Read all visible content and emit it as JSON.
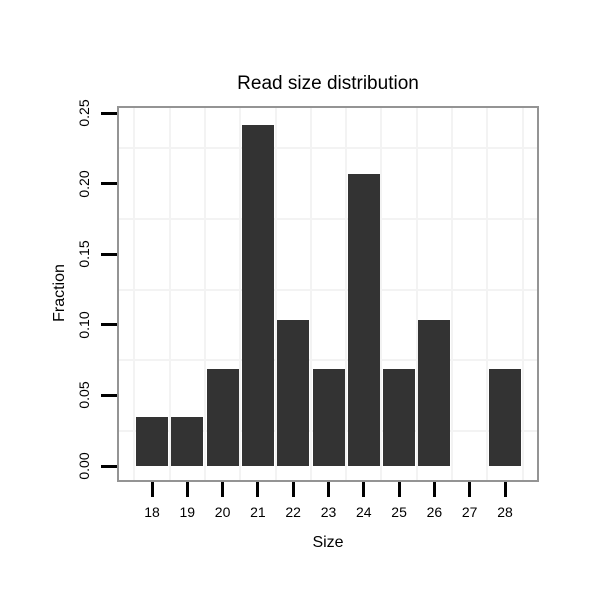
{
  "chart_data": {
    "type": "bar",
    "title": "Read size distribution",
    "xlabel": "Size",
    "ylabel": "Fraction",
    "categories": [
      18,
      19,
      20,
      21,
      22,
      23,
      24,
      25,
      26,
      27,
      28
    ],
    "values": [
      0.0345,
      0.0345,
      0.069,
      0.2414,
      0.1034,
      0.069,
      0.2069,
      0.069,
      0.1034,
      0,
      0.069
    ],
    "x_tick_labels": [
      "18",
      "19",
      "20",
      "21",
      "22",
      "23",
      "24",
      "25",
      "26",
      "27",
      "28"
    ],
    "y_ticks": [
      {
        "label": "0.00",
        "value": 0.0
      },
      {
        "label": "0.05",
        "value": 0.05
      },
      {
        "label": "0.10",
        "value": 0.1
      },
      {
        "label": "0.15",
        "value": 0.15
      },
      {
        "label": "0.20",
        "value": 0.2
      },
      {
        "label": "0.25",
        "value": 0.25
      }
    ],
    "ylim": [
      -0.0127,
      0.2549
    ],
    "xlim": [
      17.0,
      28.97
    ],
    "bar_width_units": 0.9,
    "grid": {
      "major_shown": false,
      "minor_x": [
        17.5,
        18.5,
        19.5,
        20.5,
        21.5,
        22.5,
        23.5,
        24.5,
        25.5,
        26.5,
        27.5,
        28.5
      ],
      "minor_y": [
        0.025,
        0.075,
        0.125,
        0.175,
        0.225
      ]
    },
    "legend": null,
    "colors": {
      "bar": "#333333",
      "panel_border": "#949494",
      "grid_minor": "#f3f3f3",
      "tick": "#000000",
      "text": "#000000",
      "background": "#ffffff"
    }
  }
}
